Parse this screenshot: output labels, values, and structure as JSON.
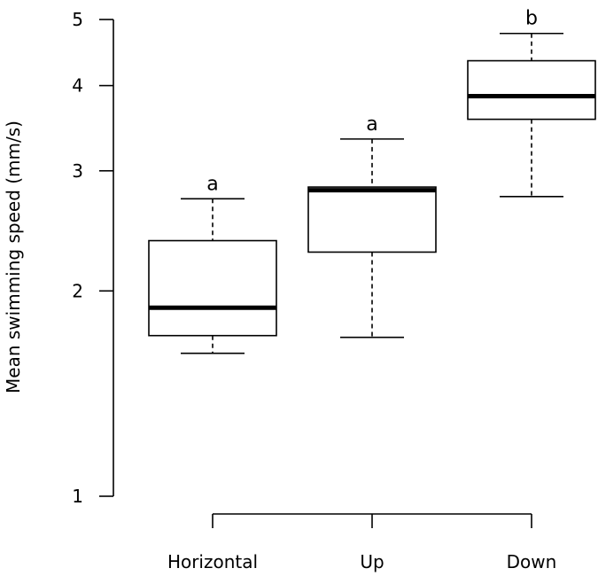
{
  "chart_data": {
    "type": "boxplot",
    "title": "",
    "xlabel": "",
    "ylabel": "Mean swimming speed (mm/s)",
    "y_scale": "log",
    "ylim": [
      1,
      5
    ],
    "y_ticks": [
      1,
      2,
      3,
      4,
      5
    ],
    "grid": false,
    "categories": [
      "Horizontal",
      "Up",
      "Down"
    ],
    "boxes": [
      {
        "category": "Horizontal",
        "whisker_low": 1.62,
        "q1": 1.72,
        "median": 1.89,
        "q3": 2.37,
        "whisker_high": 2.73,
        "significance": "a"
      },
      {
        "category": "Up",
        "whisker_low": 1.71,
        "q1": 2.28,
        "median": 2.81,
        "q3": 2.84,
        "whisker_high": 3.34,
        "significance": "a"
      },
      {
        "category": "Down",
        "whisker_low": 2.75,
        "q1": 3.57,
        "median": 3.86,
        "q3": 4.35,
        "whisker_high": 4.77,
        "significance": "b"
      }
    ]
  }
}
